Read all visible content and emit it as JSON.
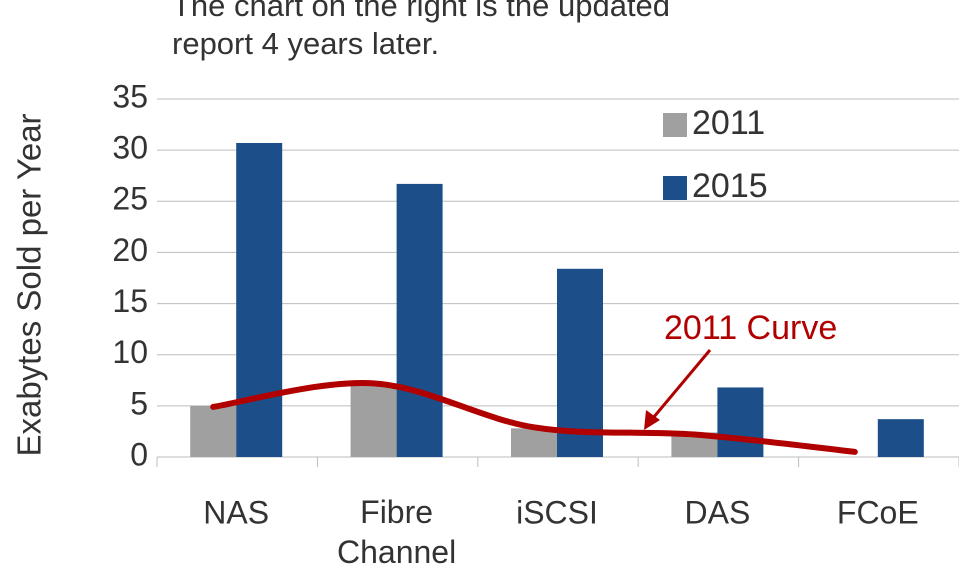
{
  "chart_data": {
    "type": "bar",
    "title_lines": [
      "The chart on the right is the updated",
      "report 4 years later."
    ],
    "y_label": "Exabytes Sold per Year",
    "categories": [
      "NAS",
      "Fibre Channel",
      "iSCSI",
      "DAS",
      "FCoE"
    ],
    "series": [
      {
        "name": "2011",
        "color": "#a0a0a0",
        "values": [
          5,
          7,
          2.8,
          2.4,
          0
        ]
      },
      {
        "name": "2015",
        "color": "#1c4f8a",
        "values": [
          30.7,
          26.7,
          18.4,
          6.8,
          3.7
        ]
      }
    ],
    "curve": {
      "name": "2011 Curve",
      "color": "#b00000",
      "values": [
        4.9,
        7.2,
        2.9,
        2.2,
        0.5
      ]
    },
    "ylim": [
      0,
      35
    ],
    "yticks": [
      0,
      5,
      10,
      15,
      20,
      25,
      30,
      35
    ],
    "grid": true
  }
}
